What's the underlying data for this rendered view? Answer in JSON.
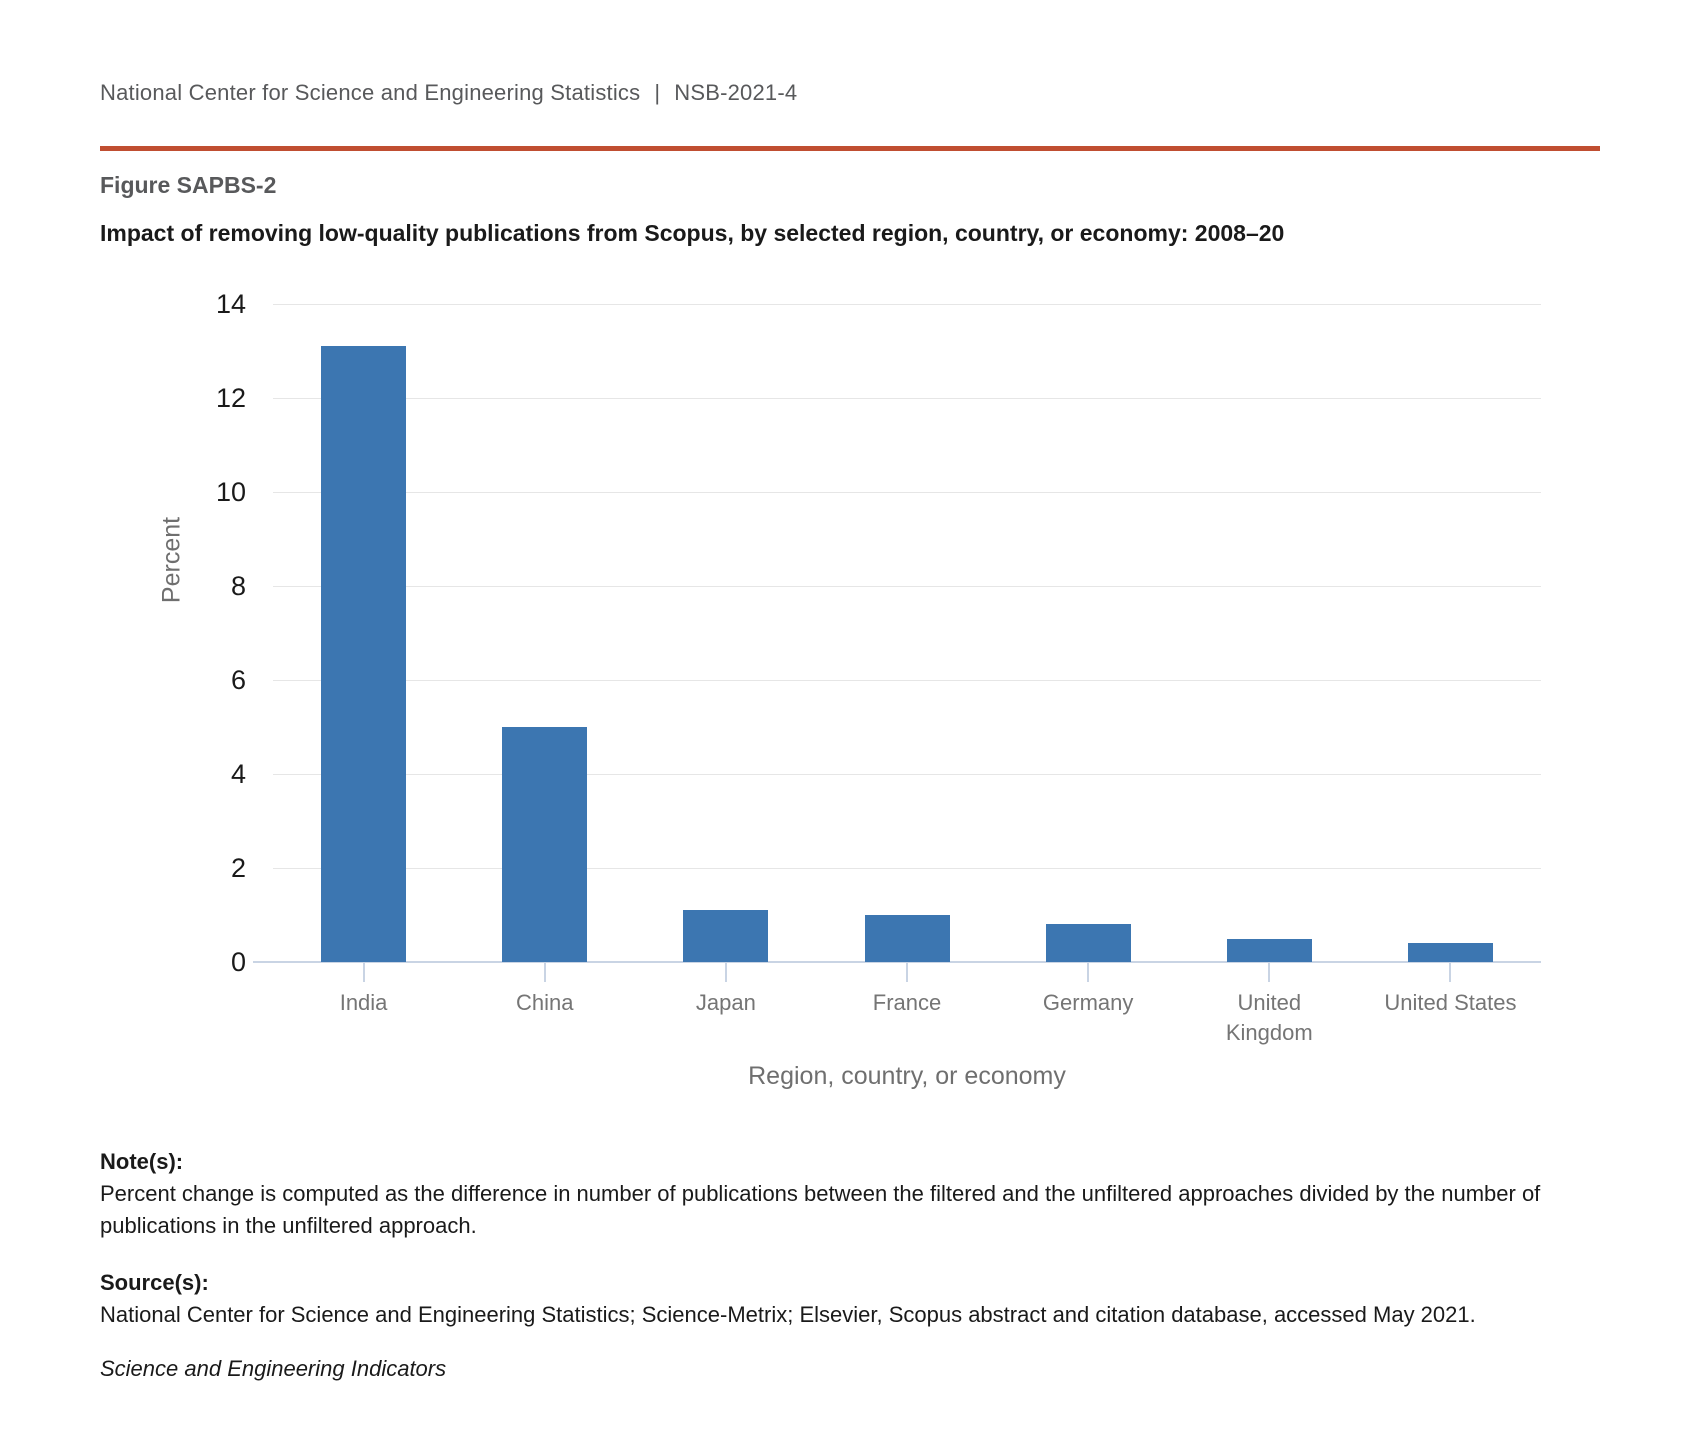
{
  "header": {
    "org": "National Center for Science and Engineering Statistics",
    "separator": "|",
    "report_id": "NSB-2021-4"
  },
  "figure": {
    "label": "Figure SAPBS-2",
    "title": "Impact of removing low-quality publications from Scopus, by selected region, country, or economy: 2008–20"
  },
  "chart_data": {
    "type": "bar",
    "title": "Impact of removing low-quality publications from Scopus, by selected region, country, or economy: 2008–20",
    "categories": [
      "India",
      "China",
      "Japan",
      "France",
      "Germany",
      "United Kingdom",
      "United States"
    ],
    "values": [
      13.1,
      5.0,
      1.1,
      1.0,
      0.8,
      0.5,
      0.4
    ],
    "xlabel": "Region, country, or economy",
    "ylabel": "Percent",
    "ylim": [
      0,
      14
    ],
    "ytick_step": 2,
    "grid": true,
    "legend": "none",
    "bar_color": "#3C76B1"
  },
  "notes": {
    "label": "Note(s):",
    "text": "Percent change is computed as the difference in number of publications between the filtered and the unfiltered approaches divided by the number of publications in the unfiltered approach."
  },
  "source": {
    "label": "Source(s):",
    "text": "National Center for Science and Engineering Statistics; Science-Metrix; Elsevier, Scopus abstract and citation database, accessed May 2021."
  },
  "credit": "Science and Engineering Indicators",
  "colors": {
    "accent_rule": "#C04E31",
    "bar": "#3C76B1",
    "gridline": "#E6E6E6",
    "axis": "#C9D4E4",
    "muted_text": "#757575",
    "header_text": "#58595B",
    "text": "#1A1A1A"
  }
}
